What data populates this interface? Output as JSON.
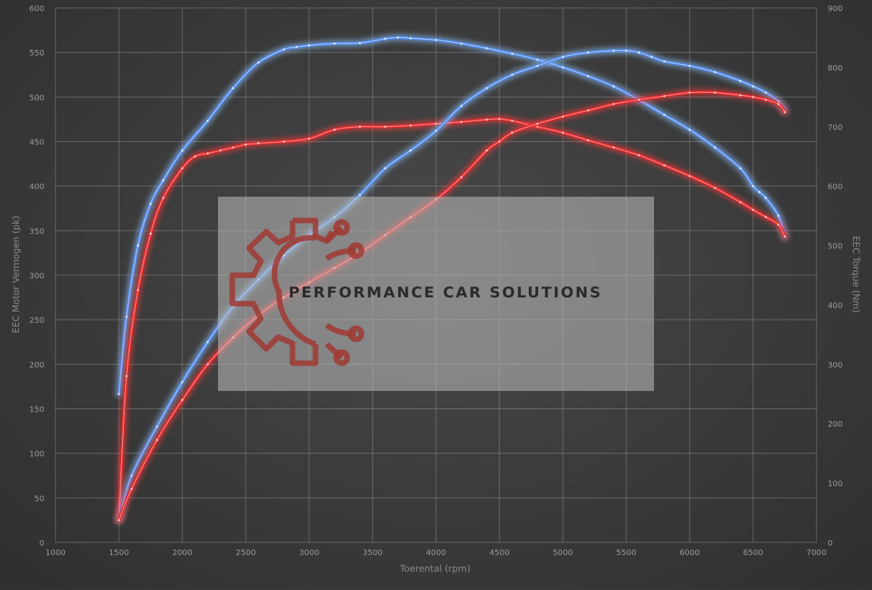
{
  "chart_data": {
    "type": "line",
    "title": "",
    "xlabel": "Toerental (rpm)",
    "ylabel_left": "EEC Motor Vermogen (pk)",
    "ylabel_right": "EEC Torque (Nm)",
    "xlim": [
      1000,
      7000
    ],
    "ylim_left": [
      0,
      600
    ],
    "ylim_right": [
      0,
      900
    ],
    "x_ticks": [
      1000,
      1500,
      2000,
      2500,
      3000,
      3500,
      4000,
      4500,
      5000,
      5500,
      6000,
      6500,
      7000
    ],
    "y_left_ticks": [
      0,
      50,
      100,
      150,
      200,
      250,
      300,
      350,
      400,
      450,
      500,
      550,
      600
    ],
    "y_right_ticks": [
      0,
      100,
      200,
      300,
      400,
      500,
      600,
      700,
      800,
      900
    ],
    "grid": true,
    "colors": {
      "blue": "#4f86e6",
      "red": "#e0282a",
      "glow_blue": "#8fc4ff",
      "glow_red": "#ff3a3a"
    },
    "series": [
      {
        "id": "torque-blue",
        "axis": "right",
        "color": "#4f86e6",
        "x": [
          1500,
          1560,
          1650,
          1750,
          1850,
          2000,
          2200,
          2400,
          2600,
          2800,
          2900,
          3000,
          3200,
          3400,
          3600,
          3700,
          3800,
          4000,
          4200,
          4400,
          4600,
          4800,
          5000,
          5200,
          5400,
          5600,
          5800,
          6000,
          6200,
          6400,
          6500,
          6550,
          6600,
          6700,
          6750
        ],
        "y": [
          250,
          380,
          500,
          570,
          610,
          660,
          710,
          765,
          808,
          830,
          834,
          837,
          840,
          841,
          848,
          850,
          849,
          846,
          840,
          832,
          823,
          813,
          800,
          785,
          768,
          745,
          720,
          695,
          665,
          630,
          600,
          590,
          580,
          550,
          515
        ]
      },
      {
        "id": "torque-red",
        "axis": "right",
        "color": "#e0282a",
        "x": [
          1500,
          1560,
          1650,
          1750,
          1850,
          2000,
          2100,
          2200,
          2300,
          2400,
          2500,
          2600,
          2800,
          3000,
          3200,
          3400,
          3600,
          3800,
          4000,
          4200,
          4400,
          4500,
          4600,
          4800,
          5000,
          5200,
          5400,
          5600,
          5800,
          6000,
          6200,
          6400,
          6500,
          6600,
          6700,
          6750
        ],
        "y": [
          40,
          280,
          425,
          520,
          580,
          630,
          650,
          655,
          660,
          665,
          670,
          672,
          675,
          680,
          695,
          700,
          700,
          702,
          705,
          708,
          712,
          713,
          710,
          700,
          690,
          677,
          665,
          652,
          635,
          617,
          597,
          573,
          560,
          548,
          535,
          515
        ]
      },
      {
        "id": "power-blue",
        "axis": "left",
        "color": "#4f86e6",
        "x": [
          1500,
          1600,
          1800,
          2000,
          2200,
          2400,
          2600,
          2800,
          3000,
          3200,
          3400,
          3600,
          3800,
          4000,
          4200,
          4400,
          4600,
          4800,
          5000,
          5200,
          5400,
          5500,
          5600,
          5700,
          5800,
          6000,
          6200,
          6400,
          6500,
          6600,
          6700,
          6750
        ],
        "y": [
          25,
          75,
          130,
          180,
          225,
          265,
          295,
          322,
          345,
          365,
          390,
          420,
          440,
          462,
          490,
          510,
          525,
          535,
          545,
          550,
          552,
          552,
          550,
          545,
          540,
          535,
          528,
          518,
          512,
          505,
          495,
          485
        ]
      },
      {
        "id": "power-red",
        "axis": "left",
        "color": "#e0282a",
        "x": [
          1500,
          1600,
          1800,
          2000,
          2200,
          2400,
          2600,
          2800,
          3000,
          3200,
          3400,
          3600,
          3800,
          4000,
          4200,
          4400,
          4500,
          4600,
          4800,
          5000,
          5200,
          5400,
          5600,
          5800,
          6000,
          6200,
          6400,
          6500,
          6600,
          6700,
          6750
        ],
        "y": [
          25,
          60,
          115,
          160,
          200,
          230,
          255,
          275,
          292,
          308,
          325,
          345,
          365,
          385,
          410,
          440,
          450,
          460,
          470,
          478,
          485,
          492,
          497,
          501,
          505,
          505,
          502,
          500,
          497,
          492,
          483
        ]
      }
    ]
  },
  "watermark": {
    "text": "PERFORMANCE CAR SOLUTIONS",
    "logo_icon": "gear-circuit-icon",
    "logo_color": "#a03a34"
  }
}
